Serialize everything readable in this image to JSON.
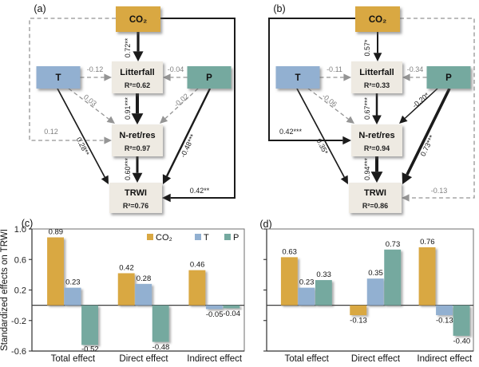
{
  "colors": {
    "co2": "#D9A843",
    "temperature": "#92B0D1",
    "precipitation": "#74A99F",
    "node_fill": "#EEEAE2",
    "solid_edge": "#1b1b1b",
    "dashed_edge": "#959595",
    "dashed_label": "#7f7f7f",
    "solid_label": "#1b1b1b",
    "axis": "#6e6e6e",
    "axis_dark": "#303030",
    "text": "#111111"
  },
  "sem_panels": [
    {
      "id": "a",
      "label": "(a)",
      "nodes": [
        {
          "id": "co2",
          "text": "CO₂",
          "color_key": "co2"
        },
        {
          "id": "t",
          "text": "T",
          "color_key": "temperature"
        },
        {
          "id": "p",
          "text": "P",
          "color_key": "precipitation"
        },
        {
          "id": "litterfall",
          "text": "Litterfall",
          "r2": "R²=0.62",
          "color_key": "node_fill"
        },
        {
          "id": "nret",
          "text": "N-ret/res",
          "r2": "R²=0.97",
          "color_key": "node_fill"
        },
        {
          "id": "trwi",
          "text": "TRWI",
          "r2": "R²=0.76",
          "color_key": "node_fill"
        }
      ],
      "edges": [
        {
          "from": "co2",
          "to": "litterfall",
          "label": "0.72**",
          "style": "solid",
          "weight": 3.2
        },
        {
          "from": "t",
          "to": "litterfall",
          "label": "-0.12",
          "style": "dashed",
          "weight": 1.3
        },
        {
          "from": "p",
          "to": "litterfall",
          "label": "-0.04",
          "style": "dashed",
          "weight": 1.3
        },
        {
          "from": "litterfall",
          "to": "nret",
          "label": "0.91***",
          "style": "solid",
          "weight": 4
        },
        {
          "from": "t",
          "to": "nret",
          "label": "0.03",
          "style": "dashed",
          "weight": 1.3
        },
        {
          "from": "p",
          "to": "nret",
          "label": "-0.02",
          "style": "dashed",
          "weight": 1.3
        },
        {
          "from": "co2",
          "to": "nret",
          "label": "0.12",
          "style": "dashed",
          "weight": 1.3
        },
        {
          "from": "t",
          "to": "trwi",
          "label": "0.28**",
          "style": "solid",
          "weight": 1.7
        },
        {
          "from": "p",
          "to": "trwi",
          "label": "-0.48***",
          "style": "solid",
          "weight": 2.4
        },
        {
          "from": "nret",
          "to": "trwi",
          "label": "0.60***",
          "style": "solid",
          "weight": 3
        },
        {
          "from": "co2",
          "to": "trwi",
          "label": "0.42**",
          "style": "solid",
          "weight": 2
        }
      ]
    },
    {
      "id": "b",
      "label": "(b)",
      "nodes": [
        {
          "id": "co2",
          "text": "CO₂",
          "color_key": "co2"
        },
        {
          "id": "t",
          "text": "T",
          "color_key": "temperature"
        },
        {
          "id": "p",
          "text": "P",
          "color_key": "precipitation"
        },
        {
          "id": "litterfall",
          "text": "Litterfall",
          "r2": "R²=0.33",
          "color_key": "node_fill"
        },
        {
          "id": "nret",
          "text": "N-ret/res",
          "r2": "R²=0.94",
          "color_key": "node_fill"
        },
        {
          "id": "trwi",
          "text": "TRWI",
          "r2": "R²=0.86",
          "color_key": "node_fill"
        }
      ],
      "edges": [
        {
          "from": "co2",
          "to": "litterfall",
          "label": "0.57*",
          "style": "solid",
          "weight": 2
        },
        {
          "from": "t",
          "to": "litterfall",
          "label": "-0.11",
          "style": "dashed",
          "weight": 1.3
        },
        {
          "from": "p",
          "to": "litterfall",
          "label": "-0.34",
          "style": "dashed",
          "weight": 1.3
        },
        {
          "from": "litterfall",
          "to": "nret",
          "label": "0.67***",
          "style": "solid",
          "weight": 2.5
        },
        {
          "from": "t",
          "to": "nret",
          "label": "-0.06",
          "style": "dashed",
          "weight": 1.3
        },
        {
          "from": "p",
          "to": "nret",
          "label": "-0.20*",
          "style": "solid",
          "weight": 1.5
        },
        {
          "from": "co2",
          "to": "nret",
          "label": "0.42***",
          "style": "solid",
          "weight": 2
        },
        {
          "from": "t",
          "to": "trwi",
          "label": "0.35*",
          "style": "solid",
          "weight": 1.7
        },
        {
          "from": "p",
          "to": "trwi",
          "label": "0.73***",
          "style": "solid",
          "weight": 3.6
        },
        {
          "from": "nret",
          "to": "trwi",
          "label": "0.94***",
          "style": "solid",
          "weight": 4
        },
        {
          "from": "co2",
          "to": "trwi",
          "label": "-0.13",
          "style": "dashed",
          "weight": 1.3
        }
      ]
    }
  ],
  "chart_data": [
    {
      "type": "bar",
      "panel_label": "(c)",
      "title": "",
      "xlabel": "",
      "ylabel": "Standardized effects on TRWI",
      "categories": [
        "Total effect",
        "Direct effect",
        "Indirect effect"
      ],
      "series": [
        {
          "name": "CO₂",
          "color_key": "co2",
          "values": [
            0.89,
            0.42,
            0.46
          ]
        },
        {
          "name": "T",
          "color_key": "temperature",
          "values": [
            0.23,
            0.28,
            -0.05
          ]
        },
        {
          "name": "P",
          "color_key": "precipitation",
          "values": [
            -0.52,
            -0.48,
            -0.04
          ]
        }
      ],
      "ylim": [
        -0.6,
        1.0
      ],
      "yticks": [
        1.0,
        0.6,
        0.2,
        -0.2,
        -0.6
      ],
      "show_ytick_labels": true,
      "legend": true,
      "legend_position": "top-right",
      "grid": false
    },
    {
      "type": "bar",
      "panel_label": "(d)",
      "title": "",
      "xlabel": "",
      "ylabel": "",
      "categories": [
        "Total effect",
        "Direct effect",
        "Indirect effect"
      ],
      "series": [
        {
          "name": "CO₂",
          "color_key": "co2",
          "values": [
            0.63,
            -0.13,
            0.76
          ]
        },
        {
          "name": "T",
          "color_key": "temperature",
          "values": [
            0.23,
            0.35,
            -0.13
          ]
        },
        {
          "name": "P",
          "color_key": "precipitation",
          "values": [
            0.33,
            0.73,
            -0.4
          ]
        }
      ],
      "ylim": [
        -0.6,
        1.0
      ],
      "yticks": [
        1.0,
        0.6,
        0.2,
        -0.2,
        -0.6
      ],
      "show_ytick_labels": false,
      "legend": false,
      "grid": false
    }
  ]
}
